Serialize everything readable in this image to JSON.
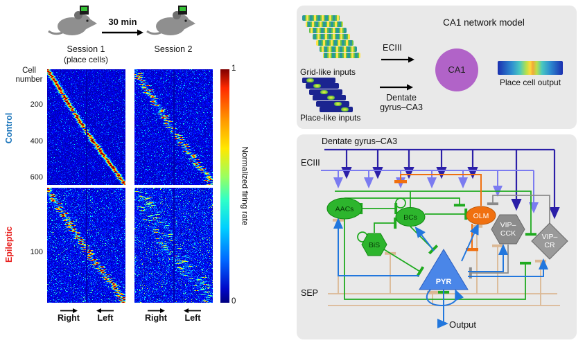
{
  "colors": {
    "control": "#1b75bb",
    "epileptic": "#e8211f",
    "panel_bg": "#e9e9e9",
    "ca1_fill": "#b163c8",
    "interneuron_green": "#2db52d",
    "olm_orange": "#f07010",
    "vip_gray": "#8c8c8c",
    "pyr_blue": "#4a86e8",
    "dentate_line": "#2b1fa8",
    "eciii_line": "#7b7bf0",
    "sep_line": "#dbb894",
    "pyr_output_line": "#2277dd"
  },
  "timeline": {
    "duration": "30 min"
  },
  "sessions": {
    "s1": "Session  1",
    "s1_sub": "(place cells)",
    "s2": "Session  2"
  },
  "axes": {
    "cell_number_line1": "Cell",
    "cell_number_line2": "number",
    "control_label": "Control",
    "epileptic_label": "Epileptic",
    "control_ticks": [
      "200",
      "400",
      "600"
    ],
    "epileptic_ticks": [
      "100"
    ],
    "right_label": "Right",
    "left_label": "Left"
  },
  "colorbar": {
    "label": "Normalized firing rate",
    "max": "1",
    "min": "0"
  },
  "model_panel": {
    "title": "CA1 network model",
    "grid_inputs": "Grid-like inputs",
    "place_inputs": "Place-like inputs",
    "eciii": "ECIII",
    "dentate_line1": "Dentate",
    "dentate_line2": "gyrus–CA3",
    "ca1": "CA1",
    "output": "Place cell output"
  },
  "network_panel": {
    "dentate": "Dentate gyrus–CA3",
    "eciii": "ECIII",
    "sep": "SEP",
    "output": "Output",
    "nodes": {
      "aacs": "AACs",
      "bcs": "BCs",
      "bis": "BiS",
      "olm": "OLM",
      "vipcck_l1": "VIP–",
      "vipcck_l2": "CCK",
      "vipcr_l1": "VIP–",
      "vipcr_l2": "CR",
      "pyr": "PYR"
    }
  },
  "chart_data": [
    {
      "type": "heatmap",
      "group": "Control",
      "panels": [
        "Session 1 (place cells)",
        "Session 2"
      ],
      "n_cells": 650,
      "ytick_values": [
        200,
        400,
        600
      ],
      "x_axis": "linear-track position, Right runs then Left runs (panel split at midline)",
      "value_label": "Normalized firing rate",
      "value_range": [
        0,
        1
      ],
      "colormap": "jet",
      "description": "Place cells sorted by field position form a red diagonal in Session 1 that is largely preserved in Session 2",
      "render": {
        "s1": {
          "seed": 11,
          "noise": 0.7,
          "amp": 1.0,
          "jitter": 0.012,
          "drop": 0.05,
          "sigma": 0.02
        },
        "s2": {
          "seed": 22,
          "noise": 0.85,
          "amp": 0.8,
          "jitter": 0.05,
          "drop": 0.3,
          "sigma": 0.02
        }
      }
    },
    {
      "type": "heatmap",
      "group": "Epileptic",
      "panels": [
        "Session 1 (place cells)",
        "Session 2"
      ],
      "n_cells": 180,
      "ytick_values": [
        100
      ],
      "x_axis": "linear-track position, Right runs then Left runs (panel split at midline)",
      "value_label": "Normalized firing rate",
      "value_range": [
        0,
        1
      ],
      "colormap": "jet",
      "description": "Noisier rate maps; diagonal present but degraded in Session 1 and largely scrambled in Session 2 (unstable place fields)",
      "render": {
        "s1": {
          "seed": 33,
          "noise": 1.05,
          "amp": 0.9,
          "jitter": 0.045,
          "drop": 0.22,
          "sigma": 0.02
        },
        "s2": {
          "seed": 44,
          "noise": 1.25,
          "amp": 0.55,
          "jitter": 0.13,
          "drop": 0.5,
          "sigma": 0.02
        }
      }
    }
  ]
}
